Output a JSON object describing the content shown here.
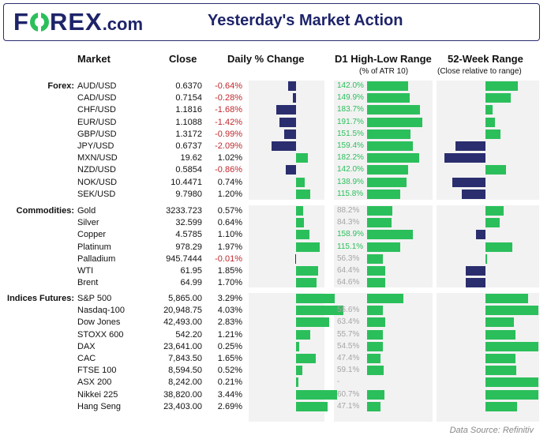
{
  "header": {
    "logo_text": "FOREX",
    "logo_suffix": ".com",
    "title": "Yesterday's Market Action"
  },
  "columns": {
    "market": "Market",
    "close": "Close",
    "daily": "Daily % Change",
    "d1_range": "D1 High-Low Range",
    "d1_sub": "(% of ATR 10)",
    "week52": "52-Week Range",
    "week52_sub": "(Close relative to range)"
  },
  "colors": {
    "positive": "#2bbf5b",
    "negative": "#2a2e6e",
    "negative_text": "#c0282d",
    "brand": "#1e2469"
  },
  "sections": [
    {
      "label": "Forex:",
      "rows": [
        {
          "market": "AUD/USD",
          "close": "0.6370",
          "change": "-0.64%",
          "change_val": -0.64,
          "range": "142.0%",
          "range_val": 142.0,
          "range_hi": true,
          "pos52": 0.85
        },
        {
          "market": "CAD/USD",
          "close": "0.7154",
          "change": "-0.28%",
          "change_val": -0.28,
          "range": "149.9%",
          "range_val": 149.9,
          "range_hi": true,
          "pos52": 0.66
        },
        {
          "market": "CHF/USD",
          "close": "1.1816",
          "change": "-1.68%",
          "change_val": -1.68,
          "range": "183.7%",
          "range_val": 183.7,
          "range_hi": true,
          "pos52": 0.18
        },
        {
          "market": "EUR/USD",
          "close": "1.1088",
          "change": "-1.42%",
          "change_val": -1.42,
          "range": "191.7%",
          "range_val": 191.7,
          "range_hi": true,
          "pos52": 0.26
        },
        {
          "market": "GBP/USD",
          "close": "1.3172",
          "change": "-0.99%",
          "change_val": -0.99,
          "range": "151.5%",
          "range_val": 151.5,
          "range_hi": true,
          "pos52": 0.4
        },
        {
          "market": "JPY/USD",
          "close": "0.6737",
          "change": "-2.09%",
          "change_val": -2.09,
          "range": "159.4%",
          "range_val": 159.4,
          "range_hi": true,
          "pos52": -0.79
        },
        {
          "market": "MXN/USD",
          "close": "19.62",
          "change": "1.02%",
          "change_val": 1.02,
          "range": "182.2%",
          "range_val": 182.2,
          "range_hi": true,
          "pos52": -1.09
        },
        {
          "market": "NZD/USD",
          "close": "0.5854",
          "change": "-0.86%",
          "change_val": -0.86,
          "range": "142.0%",
          "range_val": 142.0,
          "range_hi": true,
          "pos52": 0.55
        },
        {
          "market": "NOK/USD",
          "close": "10.4471",
          "change": "0.74%",
          "change_val": 0.74,
          "range": "138.9%",
          "range_val": 138.9,
          "range_hi": true,
          "pos52": -0.87
        },
        {
          "market": "SEK/USD",
          "close": "9.7980",
          "change": "1.20%",
          "change_val": 1.2,
          "range": "115.8%",
          "range_val": 115.8,
          "range_hi": true,
          "pos52": -0.62
        }
      ]
    },
    {
      "label": "Commodities:",
      "rows": [
        {
          "market": "Gold",
          "close": "3233.723",
          "change": "0.57%",
          "change_val": 0.57,
          "range": "88.2%",
          "range_val": 88.2,
          "range_hi": false,
          "pos52": 0.48
        },
        {
          "market": "Silver",
          "close": "32.599",
          "change": "0.64%",
          "change_val": 0.64,
          "range": "84.3%",
          "range_val": 84.3,
          "range_hi": false,
          "pos52": 0.38
        },
        {
          "market": "Copper",
          "close": "4.5785",
          "change": "1.10%",
          "change_val": 1.1,
          "range": "158.9%",
          "range_val": 158.9,
          "range_hi": true,
          "pos52": -0.26
        },
        {
          "market": "Platinum",
          "close": "978.29",
          "change": "1.97%",
          "change_val": 1.97,
          "range": "115.1%",
          "range_val": 115.1,
          "range_hi": true,
          "pos52": 0.71
        },
        {
          "market": "Palladium",
          "close": "945.7444",
          "change": "-0.01%",
          "change_val": -0.01,
          "range": "56.3%",
          "range_val": 56.3,
          "range_hi": false,
          "pos52": 0.02
        },
        {
          "market": "WTI",
          "close": "61.95",
          "change": "1.85%",
          "change_val": 1.85,
          "range": "64.4%",
          "range_val": 64.4,
          "range_hi": false,
          "pos52": -0.52
        },
        {
          "market": "Brent",
          "close": "64.99",
          "change": "1.70%",
          "change_val": 1.7,
          "range": "64.6%",
          "range_val": 64.6,
          "range_hi": false,
          "pos52": -0.52
        }
      ]
    },
    {
      "label": "Indices Futures:",
      "rows": [
        {
          "market": "S&P 500",
          "close": "5,865.00",
          "change": "3.29%",
          "change_val": 3.29,
          "range": "",
          "range_val": 128.0,
          "range_hi": false,
          "pos52": 1.12
        },
        {
          "market": "Nasdaq-100",
          "close": "20,948.75",
          "change": "4.03%",
          "change_val": 4.03,
          "range": "55.6%",
          "range_val": 55.6,
          "range_hi": false,
          "pos52": 1.4
        },
        {
          "market": "Dow Jones",
          "close": "42,493.00",
          "change": "2.83%",
          "change_val": 2.83,
          "range": "63.4%",
          "range_val": 63.4,
          "range_hi": false,
          "pos52": 0.76
        },
        {
          "market": "STOXX 600",
          "close": "542.20",
          "change": "1.21%",
          "change_val": 1.21,
          "range": "55.7%",
          "range_val": 55.7,
          "range_hi": false,
          "pos52": 0.8
        },
        {
          "market": "DAX",
          "close": "23,641.00",
          "change": "0.25%",
          "change_val": 0.25,
          "range": "54.5%",
          "range_val": 54.5,
          "range_hi": false,
          "pos52": 1.4
        },
        {
          "market": "CAC",
          "close": "7,843.50",
          "change": "1.65%",
          "change_val": 1.65,
          "range": "47.4%",
          "range_val": 47.4,
          "range_hi": false,
          "pos52": 0.8
        },
        {
          "market": "FTSE 100",
          "close": "8,594.50",
          "change": "0.52%",
          "change_val": 0.52,
          "range": "59.1%",
          "range_val": 59.1,
          "range_hi": false,
          "pos52": 0.82
        },
        {
          "market": "ASX 200",
          "close": "8,242.00",
          "change": "0.21%",
          "change_val": 0.21,
          "range": "-",
          "range_val": 0,
          "range_hi": false,
          "pos52": 1.4
        },
        {
          "market": "Nikkei 225",
          "close": "38,820.00",
          "change": "3.44%",
          "change_val": 3.44,
          "range": "60.7%",
          "range_val": 60.7,
          "range_hi": false,
          "pos52": 1.4
        },
        {
          "market": "Hang Seng",
          "close": "23,403.00",
          "change": "2.69%",
          "change_val": 2.69,
          "range": "47.1%",
          "range_val": 47.1,
          "range_hi": false,
          "pos52": 0.84
        }
      ]
    }
  ],
  "footer": {
    "source": "Data Source: Refinitiv"
  }
}
